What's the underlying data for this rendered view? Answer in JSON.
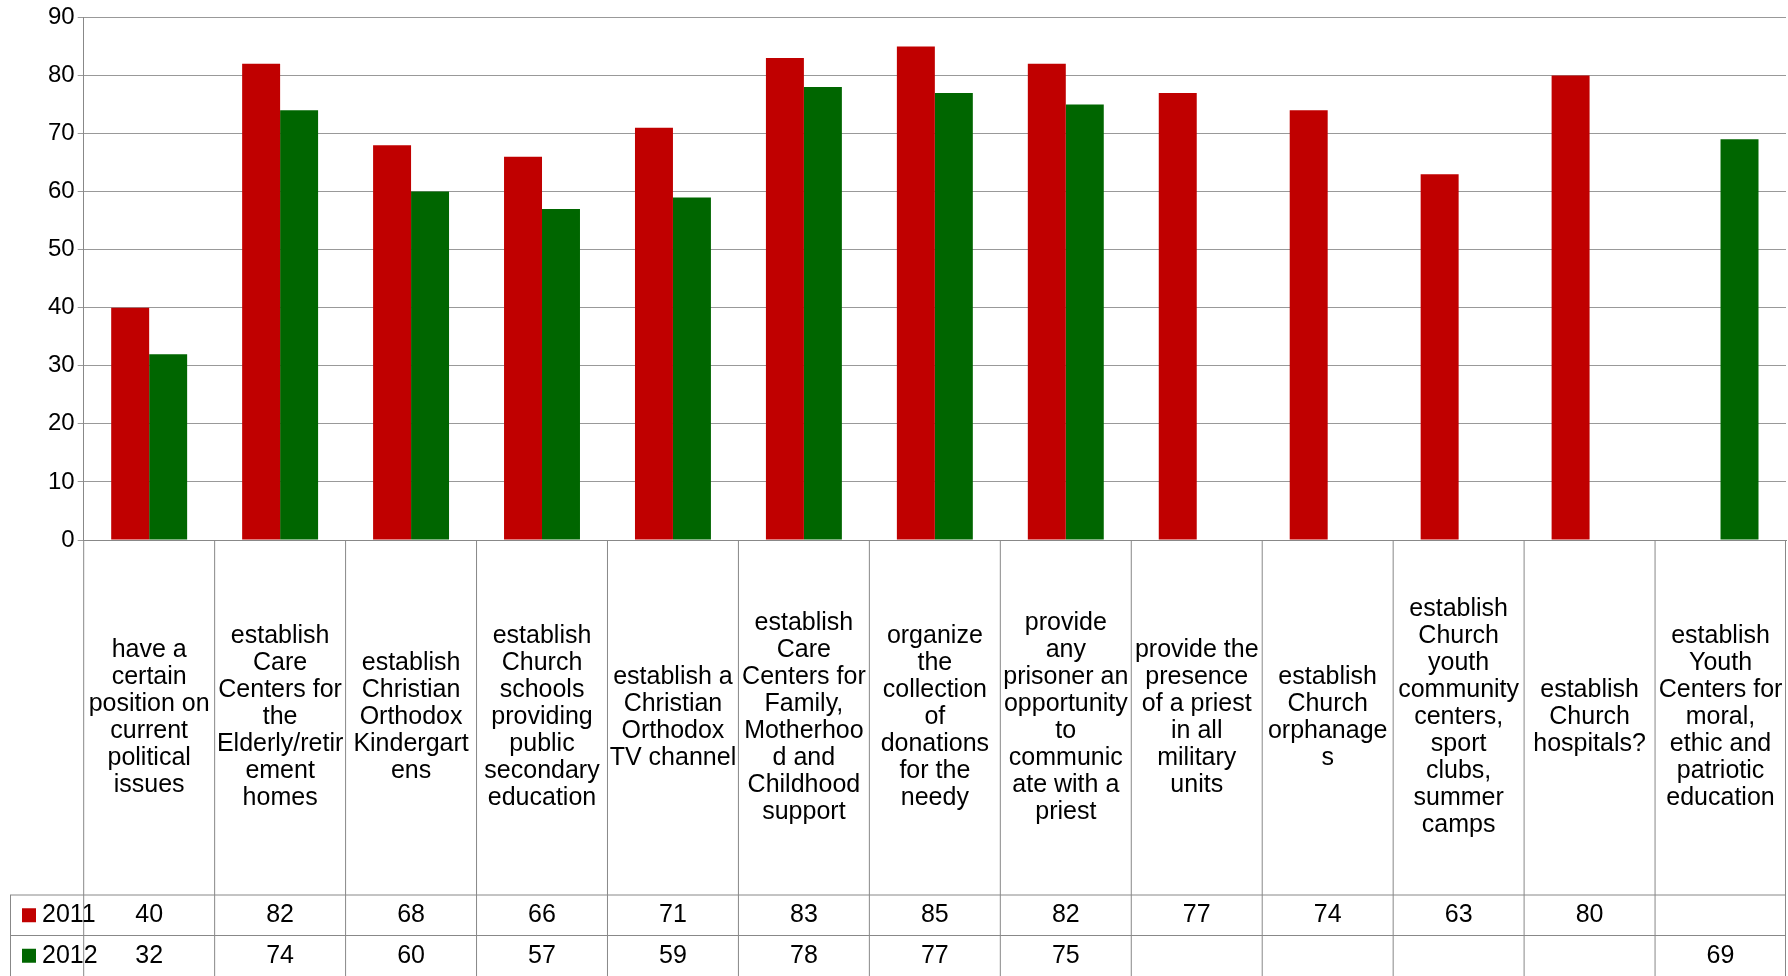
{
  "chart_data": {
    "type": "bar",
    "categories": [
      "have a certain position on current political issues",
      "establish Care Centers for the Elderly/retirement homes",
      "establish Christian Orthodox Kindergartens",
      "establish Church schools providing public secondary education",
      "establish a Christian Orthodox TV channel",
      "establish Care Centers for Family, Motherhood and Childhood support",
      "organize the collection of donations for the needy",
      "provide any prisoner an opportunity to communicate with a priest",
      "provide the presence of a priest in all military units",
      "establish Church orphanages",
      "establish Church youth community centers, sport clubs, summer camps",
      "establish Church hospitals?",
      "establish Youth Centers for moral, ethic and patriotic education"
    ],
    "series": [
      {
        "name": "2011",
        "color": "#c00000",
        "values": [
          40,
          82,
          68,
          66,
          71,
          83,
          85,
          82,
          77,
          74,
          63,
          80,
          null
        ]
      },
      {
        "name": "2012",
        "color": "#006600",
        "values": [
          32,
          74,
          60,
          57,
          59,
          78,
          77,
          75,
          null,
          null,
          null,
          null,
          69
        ]
      }
    ],
    "ylim": [
      0,
      90
    ],
    "yticks": [
      0,
      10,
      20,
      30,
      40,
      50,
      60,
      70,
      80,
      90
    ],
    "grid": "y",
    "legend": "bottom",
    "data_labels": true
  }
}
